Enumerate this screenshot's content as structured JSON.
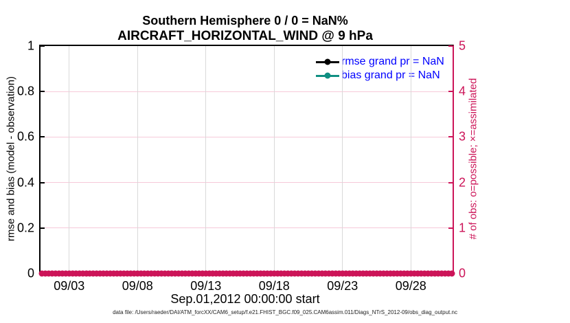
{
  "colors": {
    "crimson": "#cc1458",
    "teal": "#0f8f82",
    "legend_text_blue": "#0000ff",
    "grid_pink": "#f6c9d9",
    "grid_gray": "#d9d9d9",
    "axis_black": "#000000"
  },
  "chart_data": {
    "type": "line",
    "title": "Southern Hemisphere 0 / 0 = NaN%",
    "subtitle": "AIRCRAFT_HORIZONTAL_WIND @ 9 hPa",
    "xlabel": "Sep.01,2012 00:00:00 start",
    "footer": "data file: /Users/raeder/DAI/ATM_forcXX/CAM6_setup/f.e21.FHIST_BGC.f09_025.CAM6assim.011/Diags_NTrS_2012-09/obs_diag_output.nc",
    "grid": true,
    "legend_position": "upper right inside",
    "left_axis": {
      "label": "rmse and bias (model - observation)",
      "lim": [
        0,
        1
      ],
      "ticks": [
        "0",
        "0.2",
        "0.4",
        "0.6",
        "0.8",
        "1"
      ],
      "color": "#000000"
    },
    "right_axis": {
      "label": "# of obs: o=possible; ×=assimilated",
      "lim": [
        0,
        5
      ],
      "ticks": [
        "0",
        "1",
        "2",
        "3",
        "4",
        "5"
      ],
      "color": "#cc1458"
    },
    "x_axis": {
      "lim_days": [
        -0.1,
        30.05
      ],
      "start_date": "Sep.01,2012 00:00:00",
      "tick_days": [
        2,
        7,
        12,
        17,
        22,
        27
      ],
      "tick_labels": [
        "09/03",
        "09/08",
        "09/13",
        "09/18",
        "09/23",
        "09/28"
      ]
    },
    "legend": [
      {
        "label": "rmse grand pr = NaN",
        "line_color": "#000000",
        "marker": "filled-circle"
      },
      {
        "label": "bias grand pr = NaN",
        "line_color": "#0f8f82",
        "marker": "filled-circle"
      }
    ],
    "series": [
      {
        "name": "rmse",
        "axis": "left",
        "values": "all NaN"
      },
      {
        "name": "bias",
        "axis": "left",
        "values": "all NaN"
      },
      {
        "name": "possible obs count",
        "axis": "right",
        "marker": "o",
        "color": "#cc1458",
        "constant_value": 0,
        "start_day": 0,
        "end_day": 30,
        "step_day": 0.25
      },
      {
        "name": "assimilated obs count",
        "axis": "right",
        "marker": "×",
        "color": "#cc1458",
        "constant_value": 0,
        "start_day": 0,
        "end_day": 30,
        "step_day": 0.25
      }
    ]
  }
}
